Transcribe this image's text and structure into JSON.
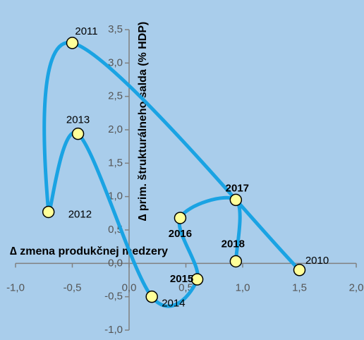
{
  "chart_data": {
    "type": "scatter",
    "x_label": "∆ zmena produkčnej medzery",
    "y_label": "∆ prim. štrukturálneho salda (% HDP)",
    "x": [
      1.5,
      -0.5,
      -0.71,
      -0.45,
      0.2,
      0.6,
      0.45,
      0.94,
      0.94
    ],
    "values": [
      -0.1,
      3.3,
      0.77,
      1.94,
      -0.5,
      -0.24,
      0.68,
      0.95,
      0.03
    ],
    "labels": [
      "2010",
      "2011",
      "2012",
      "2013",
      "2014",
      "2015",
      "2016",
      "2017",
      "2018"
    ],
    "label_bold": [
      false,
      false,
      false,
      false,
      false,
      true,
      true,
      true,
      true
    ],
    "line_color": "#1aa3e3",
    "marker_color": "#ffff99",
    "xlim": [
      -1.0,
      2.0
    ],
    "xticks": [
      {
        "value": -1.0,
        "label": "-1,0"
      },
      {
        "value": -0.5,
        "label": "-0,5"
      },
      {
        "value": 0.0,
        "label": "0,0"
      },
      {
        "value": 0.5,
        "label": "0,5"
      },
      {
        "value": 1.0,
        "label": "1,0"
      },
      {
        "value": 1.5,
        "label": "1,5"
      },
      {
        "value": 2.0,
        "label": "2,0"
      }
    ],
    "ylim": [
      -1.0,
      3.5
    ],
    "yticks": [
      {
        "value": -1.0,
        "label": "-1,0"
      },
      {
        "value": -0.5,
        "label": "-0,5"
      },
      {
        "value": 0.0,
        "label": "0,0"
      },
      {
        "value": 0.5,
        "label": "0,5"
      },
      {
        "value": 1.0,
        "label": "1,0"
      },
      {
        "value": 1.5,
        "label": "1,5"
      },
      {
        "value": 2.0,
        "label": "2,0"
      },
      {
        "value": 2.5,
        "label": "2,5"
      },
      {
        "value": 3.0,
        "label": "3,0"
      },
      {
        "value": 3.5,
        "label": "3,5"
      }
    ]
  }
}
